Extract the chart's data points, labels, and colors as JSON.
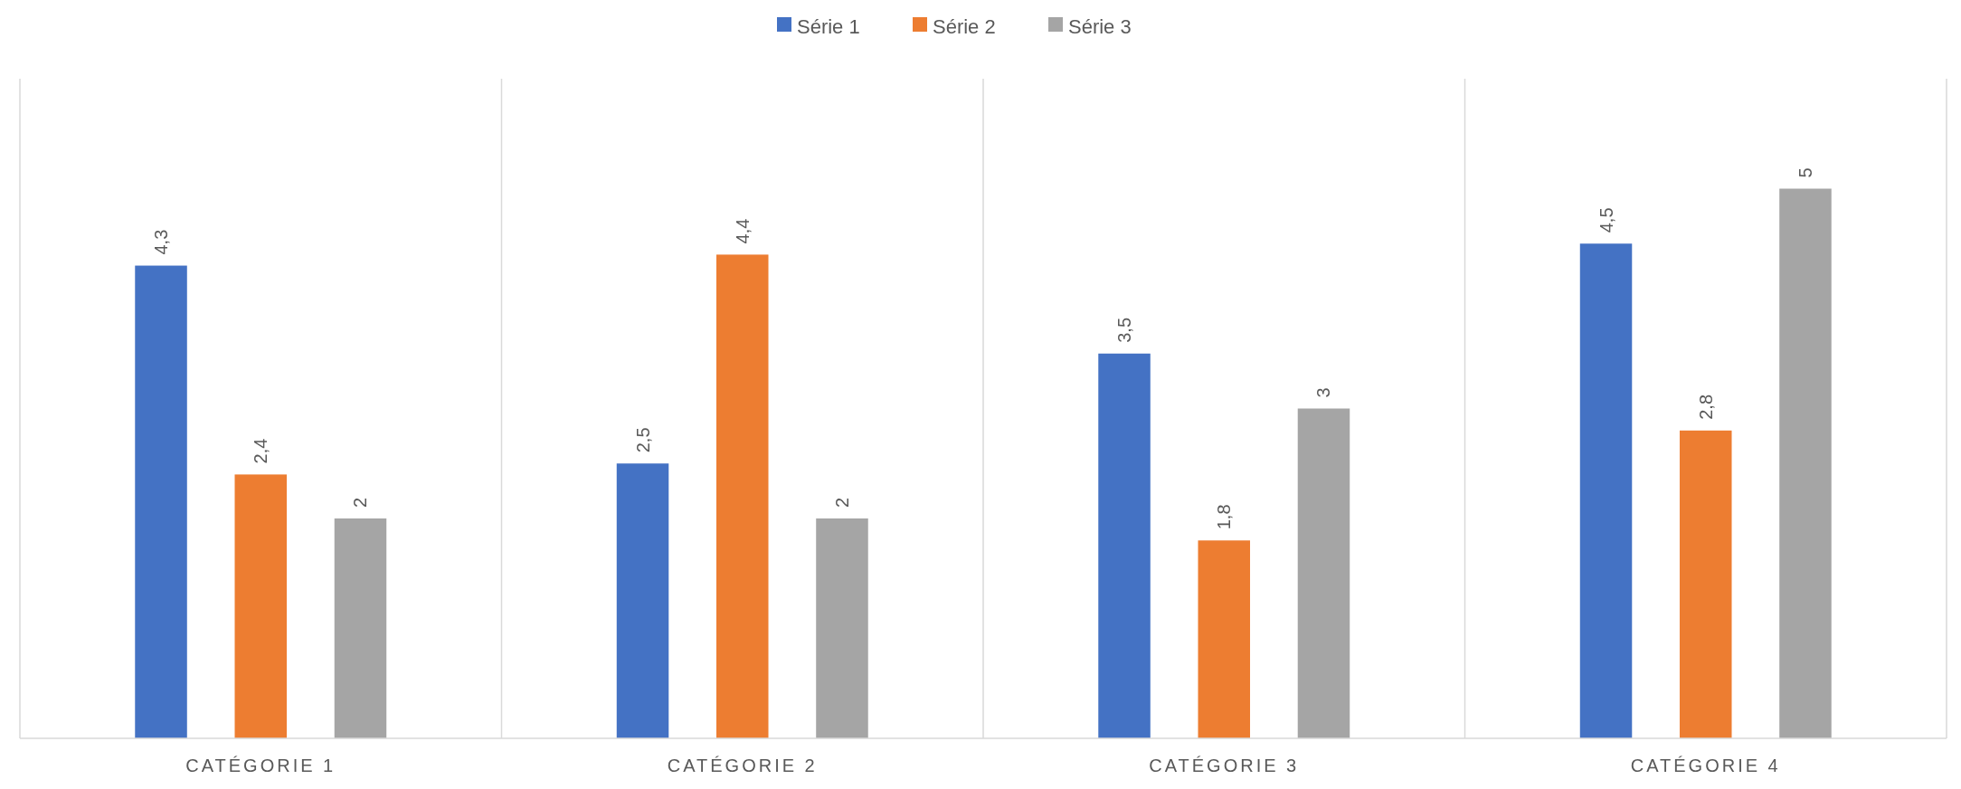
{
  "chart_data": {
    "type": "bar",
    "categories": [
      "CATÉGORIE 1",
      "CATÉGORIE 2",
      "CATÉGORIE 3",
      "CATÉGORIE 4"
    ],
    "ylim": [
      0,
      6
    ],
    "tick_labels": "x",
    "grid": "x",
    "legend": "top",
    "series": [
      {
        "name": "Série 1",
        "color": "#4472c4",
        "values": [
          4.3,
          2.5,
          3.5,
          4.5
        ],
        "value_labels": [
          "4,3",
          "2,5",
          "3,5",
          "4,5"
        ]
      },
      {
        "name": "Série 2",
        "color": "#ed7d31",
        "values": [
          2.4,
          4.4,
          1.8,
          2.8
        ],
        "value_labels": [
          "2,4",
          "4,4",
          "1,8",
          "2,8"
        ]
      },
      {
        "name": "Série 3",
        "color": "#a5a5a5",
        "values": [
          2,
          2,
          3,
          5
        ],
        "value_labels": [
          "2",
          "2",
          "3",
          "5"
        ]
      }
    ]
  }
}
